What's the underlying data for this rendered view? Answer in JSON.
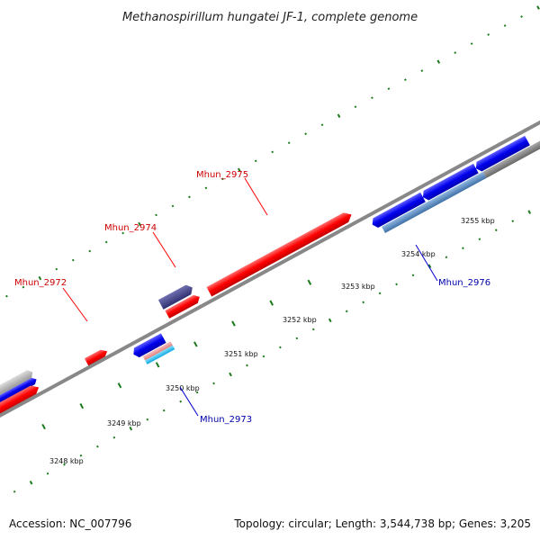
{
  "title": "Methanospirillum hungatei JF-1, complete genome",
  "accession": "Accession: NC_007796",
  "summary": "Topology: circular; Length: 3,544,738 bp; Genes: 3,205",
  "colors": {
    "forward": "#ff0000",
    "reverse": "#0000ff",
    "forward_label": "#cc0000",
    "reverse_label": "#0000aa",
    "tick": "#1a7a1a",
    "backbone": "#888888"
  },
  "kbp_ticks": [
    {
      "label": "3248 kbp"
    },
    {
      "label": "3249 kbp"
    },
    {
      "label": "3250 kbp"
    },
    {
      "label": "3251 kbp"
    },
    {
      "label": "3252 kbp"
    },
    {
      "label": "3253 kbp"
    },
    {
      "label": "3254 kbp"
    },
    {
      "label": "3255 kbp"
    }
  ],
  "gene_labels": [
    {
      "name": "Mhun_2972",
      "strand": "forward"
    },
    {
      "name": "Mhun_2974",
      "strand": "forward"
    },
    {
      "name": "Mhun_2975",
      "strand": "forward"
    },
    {
      "name": "Mhun_2973",
      "strand": "reverse"
    },
    {
      "name": "Mhun_2976",
      "strand": "reverse"
    }
  ]
}
